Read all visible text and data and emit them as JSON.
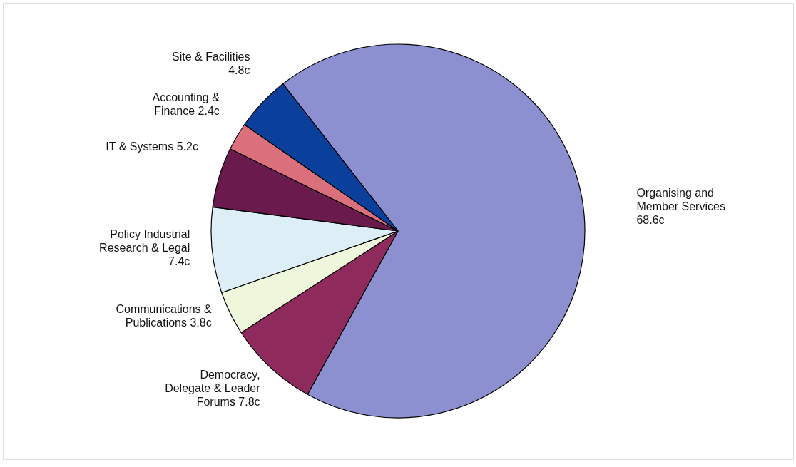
{
  "chart_data": {
    "type": "pie",
    "categories": [
      "Organising and Member Services",
      "Democracy, Delegate & Leader Forums",
      "Communications & Publications",
      "Policy Industrial Research & Legal",
      "IT & Systems",
      "Accounting & Finance",
      "Site & Facilities"
    ],
    "values": [
      68.6,
      7.8,
      3.8,
      7.4,
      5.2,
      2.4,
      4.8
    ],
    "value_labels": [
      "68.6c",
      "7.8c",
      "3.8c",
      "7.4c",
      "5.2c",
      "2.4c",
      "4.8c"
    ],
    "colors": [
      "#8c8fd0",
      "#8e2a5c",
      "#eef6dc",
      "#ddeef6",
      "#6a1a4c",
      "#d9707c",
      "#0b3f9c"
    ]
  }
}
